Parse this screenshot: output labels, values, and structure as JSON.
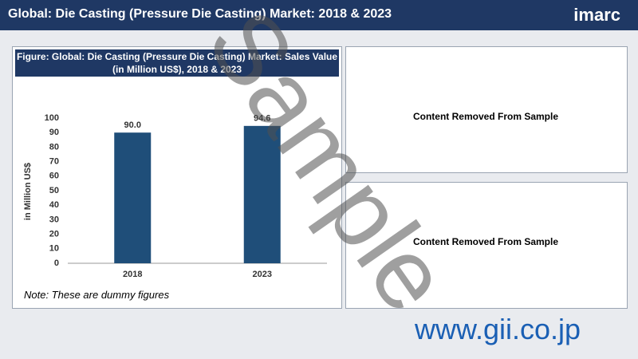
{
  "header": {
    "title": "Global: Die Casting (Pressure Die Casting) Market: 2018 & 2023",
    "logo": "imarc"
  },
  "chart_data": {
    "type": "bar",
    "title": "Figure: Global: Die Casting (Pressure Die Casting) Market: Sales Value (in Million US$), 2018 & 2023",
    "categories": [
      "2018",
      "2023"
    ],
    "values": [
      90.0,
      94.6
    ],
    "value_labels": [
      "90.0",
      "94.6"
    ],
    "y_label": "in Million US$",
    "color": "#1f4e79",
    "ylim": [
      0,
      100
    ],
    "yticks": [
      0,
      10,
      20,
      30,
      40,
      50,
      60,
      70,
      80,
      90,
      100
    ]
  },
  "note": "Note: These are dummy figures",
  "panels": [
    "Content Removed From Sample",
    "Content Removed From Sample"
  ],
  "watermark": "Sample",
  "site": "www.gii.co.jp"
}
